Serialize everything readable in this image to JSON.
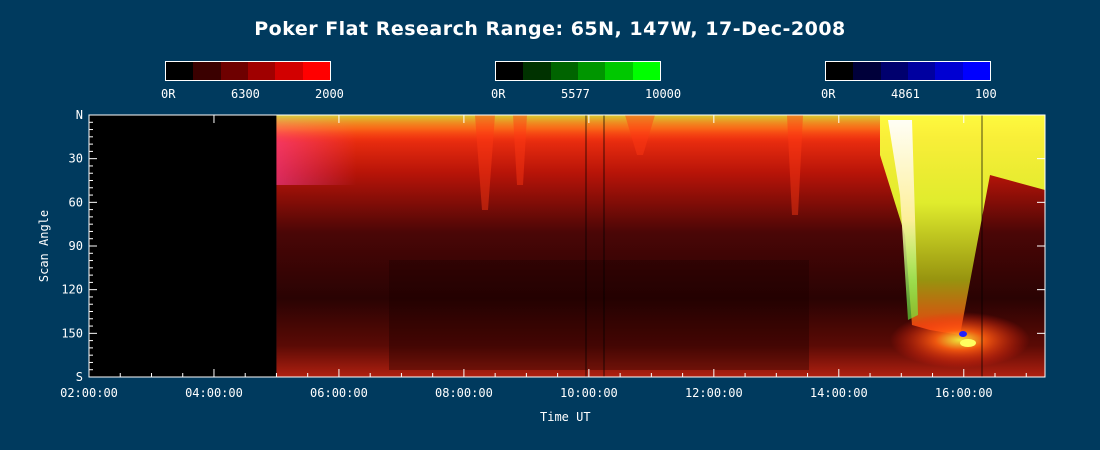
{
  "title": "Poker Flat Research Range: 65N, 147W, 17-Dec-2008",
  "colorbars": [
    {
      "zero_label": "0R",
      "wavelength_label": "6300",
      "max_label": "2000",
      "colors": [
        "#000000",
        "#3a0000",
        "#6e0000",
        "#a00000",
        "#d20000",
        "#ff0000"
      ]
    },
    {
      "zero_label": "0R",
      "wavelength_label": "5577",
      "max_label": "10000",
      "colors": [
        "#000000",
        "#003200",
        "#006400",
        "#009600",
        "#00c800",
        "#00ff00"
      ]
    },
    {
      "zero_label": "0R",
      "wavelength_label": "4861",
      "max_label": "100",
      "colors": [
        "#000000",
        "#00003a",
        "#00006e",
        "#0000a0",
        "#0000d2",
        "#0000ff"
      ]
    }
  ],
  "chart_data": {
    "type": "heatmap",
    "title": "Poker Flat Research Range: 65N, 147W, 17-Dec-2008",
    "xlabel": "Time UT",
    "ylabel": "Scan Angle",
    "x_ticks": [
      "02:00:00",
      "04:00:00",
      "06:00:00",
      "08:00:00",
      "10:00:00",
      "12:00:00",
      "14:00:00",
      "16:00:00"
    ],
    "x_tick_hours": [
      2,
      4,
      6,
      8,
      10,
      12,
      14,
      16
    ],
    "xlim_hours": [
      2.0,
      17.3
    ],
    "y_ticks": [
      "N",
      "30",
      "60",
      "90",
      "120",
      "150",
      "S"
    ],
    "y_tick_values": [
      0,
      30,
      60,
      90,
      120,
      150,
      180
    ],
    "ylim": [
      0,
      180
    ],
    "data_start_hour": 5.0,
    "channels": [
      {
        "wavelength": "6300",
        "range": [
          0,
          2000
        ]
      },
      {
        "wavelength": "5577",
        "range": [
          0,
          10000
        ]
      },
      {
        "wavelength": "4861",
        "range": [
          0,
          100
        ]
      }
    ]
  }
}
